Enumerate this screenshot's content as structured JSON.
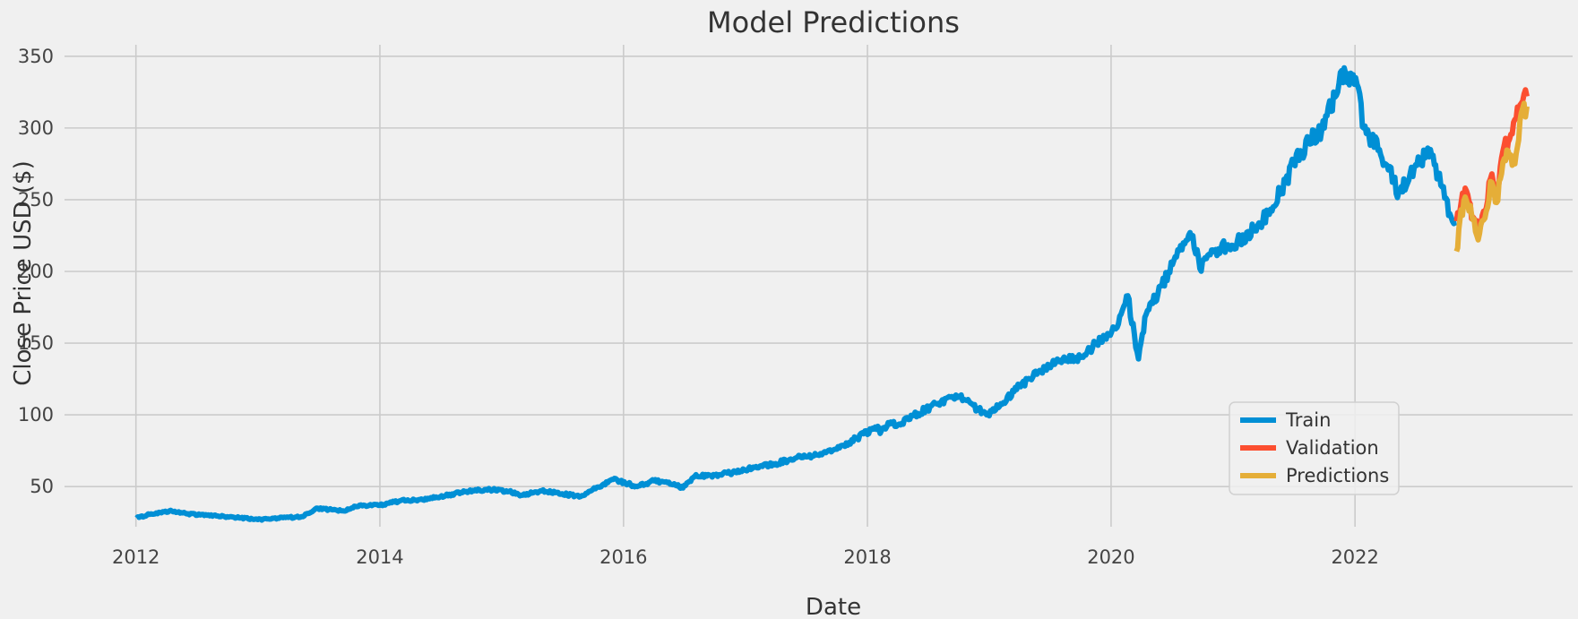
{
  "chart_data": {
    "type": "line",
    "title": "Model Predictions",
    "xlabel": "Date",
    "ylabel": "Close Price USD ($)",
    "xlim": [
      "2011-06-01",
      "2023-10-15"
    ],
    "ylim": [
      22,
      358
    ],
    "x_ticks": [
      "2012",
      "2014",
      "2016",
      "2018",
      "2020",
      "2022"
    ],
    "y_ticks": [
      50,
      100,
      150,
      200,
      250,
      300,
      350
    ],
    "grid": true,
    "legend_position": "bottom-right",
    "colors": {
      "Train": "#008fd5",
      "Validation": "#fc4f30",
      "Predictions": "#e5ae38",
      "background": "#f0f0f0",
      "grid": "#cbcbcb"
    },
    "series": [
      {
        "name": "Train",
        "x": [
          "2012-01-03",
          "2012-02-15",
          "2012-04-10",
          "2012-06-01",
          "2012-08-01",
          "2012-10-01",
          "2012-12-31",
          "2013-03-01",
          "2013-05-15",
          "2013-06-25",
          "2013-08-01",
          "2013-09-15",
          "2013-11-01",
          "2014-01-01",
          "2014-03-01",
          "2014-05-01",
          "2014-07-01",
          "2014-09-01",
          "2014-11-15",
          "2015-01-15",
          "2015-03-01",
          "2015-05-01",
          "2015-07-01",
          "2015-08-25",
          "2015-10-01",
          "2015-12-01",
          "2016-01-15",
          "2016-02-11",
          "2016-04-01",
          "2016-06-01",
          "2016-06-27",
          "2016-08-01",
          "2016-10-01",
          "2016-12-01",
          "2017-02-01",
          "2017-04-01",
          "2017-06-01",
          "2017-08-01",
          "2017-10-01",
          "2017-12-01",
          "2018-02-01",
          "2018-02-08",
          "2018-03-12",
          "2018-04-02",
          "2018-06-01",
          "2018-08-01",
          "2018-10-01",
          "2018-12-24",
          "2019-02-01",
          "2019-04-01",
          "2019-06-01",
          "2019-08-01",
          "2019-10-01",
          "2019-12-01",
          "2020-01-15",
          "2020-02-20",
          "2020-03-23",
          "2020-04-15",
          "2020-06-01",
          "2020-07-15",
          "2020-09-02",
          "2020-09-23",
          "2020-11-01",
          "2021-01-01",
          "2021-03-15",
          "2021-05-01",
          "2021-07-01",
          "2021-08-15",
          "2021-10-01",
          "2021-11-22",
          "2021-12-15",
          "2022-01-03",
          "2022-01-27",
          "2022-03-15",
          "2022-05-12",
          "2022-06-15",
          "2022-08-15",
          "2022-09-15",
          "2022-10-20",
          "2022-11-01"
        ],
        "y": [
          28,
          31,
          33,
          31,
          30,
          29,
          27,
          28,
          29,
          35,
          34,
          33,
          37,
          37,
          40,
          41,
          43,
          46,
          48,
          47,
          44,
          47,
          45,
          43,
          48,
          55,
          52,
          50,
          54,
          52,
          49,
          57,
          58,
          60,
          64,
          66,
          70,
          72,
          76,
          84,
          92,
          87,
          95,
          93,
          101,
          108,
          113,
          100,
          106,
          120,
          131,
          138,
          140,
          152,
          160,
          183,
          139,
          170,
          190,
          210,
          225,
          202,
          215,
          218,
          232,
          245,
          275,
          290,
          300,
          340,
          330,
          335,
          300,
          285,
          255,
          268,
          285,
          260,
          235,
          234
        ]
      },
      {
        "name": "Validation",
        "x": [
          "2022-11-01",
          "2022-11-15",
          "2022-12-01",
          "2022-12-20",
          "2023-01-05",
          "2023-01-25",
          "2023-02-15",
          "2023-03-01",
          "2023-03-20",
          "2023-04-05",
          "2023-04-25",
          "2023-05-10",
          "2023-05-31"
        ],
        "y": [
          235,
          248,
          256,
          238,
          228,
          242,
          268,
          252,
          284,
          290,
          306,
          316,
          322
        ]
      },
      {
        "name": "Predictions",
        "x": [
          "2022-11-01",
          "2022-11-15",
          "2022-12-01",
          "2022-12-20",
          "2023-01-05",
          "2023-01-25",
          "2023-02-15",
          "2023-03-01",
          "2023-03-20",
          "2023-04-05",
          "2023-04-25",
          "2023-05-10",
          "2023-05-31"
        ],
        "y": [
          214,
          243,
          249,
          236,
          222,
          237,
          262,
          248,
          276,
          284,
          275,
          305,
          315
        ]
      }
    ]
  }
}
